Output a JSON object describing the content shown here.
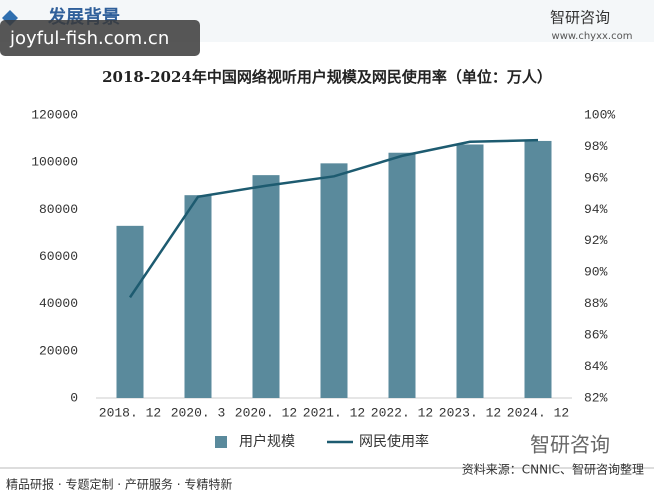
{
  "header": {
    "section": "发展背景",
    "watermark": "joyful-fish.com.cn",
    "brand": "智研咨询",
    "site": "www.chyxx.com"
  },
  "footer": {
    "services": "精品研报 · 专题定制 · 产研服务 · 专精特新",
    "brand": "智研咨询",
    "source": "资料来源：CNNIC、智研咨询整理"
  },
  "chart_data": {
    "type": "combo",
    "title": "2018-2024年中国网络视听用户规模及网民使用率（单位：万人）",
    "categories": [
      "2018. 12",
      "2020. 3",
      "2020. 12",
      "2021. 12",
      "2022. 12",
      "2023. 12",
      "2024. 12"
    ],
    "series": [
      {
        "name": "用户规模",
        "type": "bar",
        "color": "#5a8a9c",
        "values": [
          73000,
          86000,
          94500,
          99500,
          104000,
          107500,
          109000
        ]
      },
      {
        "name": "网民使用率",
        "type": "line",
        "axis": "y2",
        "color": "#1d5b70",
        "values": [
          88.4,
          94.8,
          95.5,
          96.1,
          97.4,
          98.3,
          98.4
        ]
      }
    ],
    "ylim": [
      0,
      120000
    ],
    "yticks": [
      0,
      20000,
      40000,
      60000,
      80000,
      100000,
      120000
    ],
    "y2lim": [
      82,
      100
    ],
    "y2ticks": [
      {
        "value": 82,
        "label": "82%"
      },
      {
        "value": 84,
        "label": "84%"
      },
      {
        "value": 86,
        "label": "86%"
      },
      {
        "value": 88,
        "label": "88%"
      },
      {
        "value": 90,
        "label": "90%"
      },
      {
        "value": 92,
        "label": "92%"
      },
      {
        "value": 94,
        "label": "94%"
      },
      {
        "value": 96,
        "label": "96%"
      },
      {
        "value": 98,
        "label": "98%"
      },
      {
        "value": 100,
        "label": "100%"
      }
    ],
    "legend": "bottom"
  }
}
